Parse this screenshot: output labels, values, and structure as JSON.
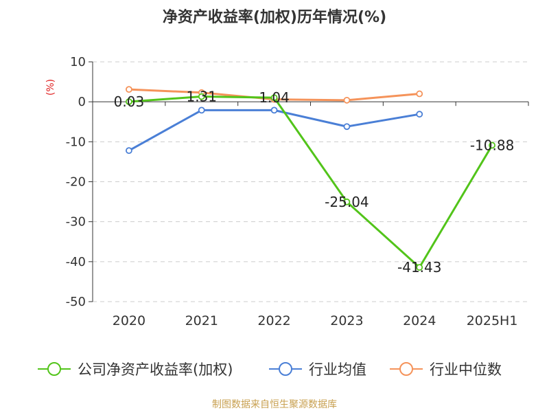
{
  "chart_data": {
    "type": "line",
    "title": "净资产收益率(加权)历年情况(%)",
    "ylabel": "(%)",
    "xlabel": "",
    "categories": [
      "2020",
      "2021",
      "2022",
      "2023",
      "2024",
      "2025H1"
    ],
    "ylim": [
      -50,
      10
    ],
    "yticks": [
      10,
      0,
      -10,
      -20,
      -30,
      -40,
      -50
    ],
    "grid": true,
    "legend_position": "bottom",
    "series": [
      {
        "name": "公司净资产收益率(加权)",
        "color": "#52c41a",
        "values": [
          0.03,
          1.31,
          1.04,
          -25.04,
          -41.43,
          -10.88
        ],
        "labels": [
          "0.03",
          "1.31",
          "1.04",
          "-25.04",
          "-41.43",
          "-10.88"
        ]
      },
      {
        "name": "行业均值",
        "color": "#4a7fd6",
        "values": [
          -12.2,
          -2.1,
          -2.1,
          -6.2,
          -3.1,
          null
        ]
      },
      {
        "name": "行业中位数",
        "color": "#f5935a",
        "values": [
          3.1,
          2.3,
          0.6,
          0.4,
          2.0,
          null
        ]
      }
    ]
  },
  "footer": {
    "source": "制图数据来自恒生聚源数据库"
  }
}
